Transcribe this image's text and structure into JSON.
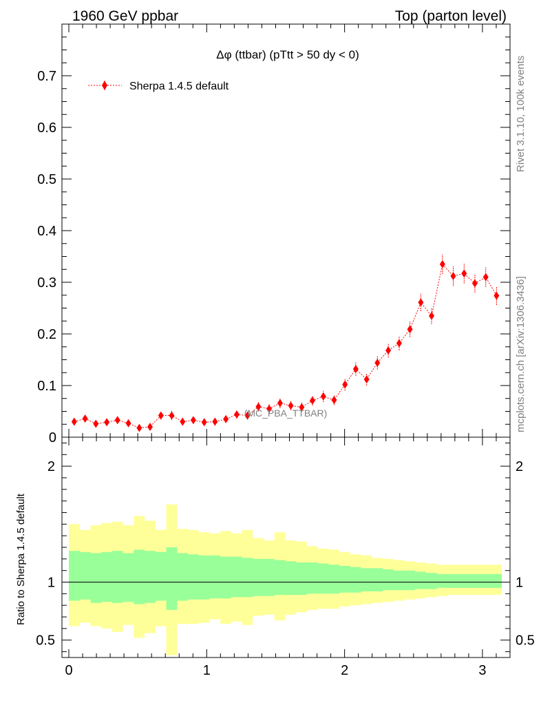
{
  "header": {
    "left": "1960 GeV ppbar",
    "right": "Top (parton level)"
  },
  "side": {
    "rivet": "Rivet 3.1.10,  100k events",
    "mcplots": "mcplots.cern.ch [arXiv:1306.3436]"
  },
  "chart_data": [
    {
      "type": "scatter",
      "title": "Δφ (ttbar) (pTtt > 50 dy < 0)",
      "watermark": "(MC_PBA_TTBAR)",
      "legend": "Sherpa 1.4.5 default",
      "legend_placement": "top-left",
      "color": "#ff0000",
      "xlim": [
        -0.05,
        3.2
      ],
      "ylim": [
        0,
        0.8
      ],
      "yticks": [
        0,
        0.1,
        0.2,
        0.3,
        0.4,
        0.5,
        0.6,
        0.7
      ],
      "ytick_labels": [
        "0",
        "0.1",
        "0.2",
        "0.3",
        "0.4",
        "0.5",
        "0.6",
        "0.7"
      ],
      "series": [
        {
          "name": "Sherpa 1.4.5 default",
          "x": [
            0.039,
            0.118,
            0.196,
            0.275,
            0.353,
            0.432,
            0.511,
            0.589,
            0.668,
            0.746,
            0.825,
            0.903,
            0.982,
            1.06,
            1.139,
            1.218,
            1.296,
            1.375,
            1.453,
            1.532,
            1.61,
            1.689,
            1.767,
            1.846,
            1.924,
            2.003,
            2.081,
            2.16,
            2.238,
            2.317,
            2.396,
            2.474,
            2.553,
            2.631,
            2.71,
            2.788,
            2.867,
            2.945,
            3.024,
            3.102
          ],
          "y": [
            0.03,
            0.036,
            0.026,
            0.029,
            0.033,
            0.027,
            0.018,
            0.02,
            0.042,
            0.042,
            0.03,
            0.033,
            0.029,
            0.03,
            0.035,
            0.044,
            0.042,
            0.059,
            0.055,
            0.066,
            0.061,
            0.058,
            0.071,
            0.079,
            0.072,
            0.102,
            0.132,
            0.112,
            0.144,
            0.168,
            0.182,
            0.209,
            0.261,
            0.235,
            0.335,
            0.312,
            0.317,
            0.298,
            0.31,
            0.274
          ],
          "yerr": [
            0.006,
            0.007,
            0.006,
            0.006,
            0.007,
            0.006,
            0.005,
            0.005,
            0.008,
            0.009,
            0.006,
            0.007,
            0.006,
            0.006,
            0.007,
            0.008,
            0.008,
            0.009,
            0.009,
            0.01,
            0.009,
            0.009,
            0.01,
            0.011,
            0.01,
            0.012,
            0.013,
            0.012,
            0.013,
            0.014,
            0.014,
            0.015,
            0.017,
            0.016,
            0.019,
            0.019,
            0.019,
            0.018,
            0.019,
            0.018
          ]
        }
      ]
    },
    {
      "type": "area",
      "ylabel": "Ratio to Sherpa 1.4.5 default",
      "xlim": [
        -0.05,
        3.2
      ],
      "ylim": [
        0.35,
        2.25
      ],
      "reference_line": 1,
      "xticks": [
        0,
        1,
        2,
        3
      ],
      "xtick_labels": [
        "0",
        "1",
        "2",
        "3"
      ],
      "yticks": [
        0.5,
        1,
        2
      ],
      "ytick_labels": [
        "0.5",
        "1",
        "2"
      ],
      "bin_edges": [
        0,
        0.0785,
        0.157,
        0.2355,
        0.314,
        0.3925,
        0.471,
        0.5495,
        0.628,
        0.7065,
        0.785,
        0.8635,
        0.942,
        1.0205,
        1.099,
        1.1775,
        1.256,
        1.3345,
        1.413,
        1.4915,
        1.57,
        1.6485,
        1.727,
        1.8055,
        1.884,
        1.9625,
        2.041,
        2.1195,
        2.198,
        2.2765,
        2.355,
        2.4335,
        2.512,
        2.5905,
        2.669,
        2.7475,
        2.826,
        2.9045,
        2.983,
        3.0615,
        3.14
      ],
      "bands": [
        {
          "name": "inner",
          "color": "#99ff99",
          "lower": [
            0.84,
            0.85,
            0.82,
            0.83,
            0.82,
            0.83,
            0.81,
            0.82,
            0.84,
            0.76,
            0.84,
            0.85,
            0.85,
            0.86,
            0.86,
            0.87,
            0.87,
            0.88,
            0.88,
            0.89,
            0.89,
            0.89,
            0.9,
            0.9,
            0.9,
            0.91,
            0.91,
            0.92,
            0.92,
            0.93,
            0.93,
            0.93,
            0.94,
            0.94,
            0.95,
            0.95,
            0.95,
            0.95,
            0.95,
            0.95
          ],
          "upper": [
            1.27,
            1.26,
            1.25,
            1.26,
            1.27,
            1.25,
            1.28,
            1.27,
            1.26,
            1.3,
            1.25,
            1.24,
            1.23,
            1.23,
            1.22,
            1.22,
            1.21,
            1.2,
            1.2,
            1.19,
            1.18,
            1.17,
            1.17,
            1.16,
            1.15,
            1.14,
            1.13,
            1.12,
            1.12,
            1.11,
            1.1,
            1.1,
            1.09,
            1.08,
            1.07,
            1.07,
            1.07,
            1.07,
            1.07,
            1.07
          ]
        },
        {
          "name": "outer",
          "color": "#ffff99",
          "lower": [
            0.62,
            0.65,
            0.62,
            0.6,
            0.57,
            0.63,
            0.52,
            0.56,
            0.62,
            0.37,
            0.64,
            0.64,
            0.65,
            0.68,
            0.64,
            0.66,
            0.63,
            0.71,
            0.72,
            0.67,
            0.72,
            0.74,
            0.76,
            0.77,
            0.77,
            0.79,
            0.8,
            0.81,
            0.82,
            0.83,
            0.84,
            0.85,
            0.86,
            0.87,
            0.88,
            0.89,
            0.89,
            0.89,
            0.89,
            0.89
          ],
          "upper": [
            1.5,
            1.45,
            1.49,
            1.51,
            1.52,
            1.49,
            1.57,
            1.53,
            1.45,
            1.67,
            1.46,
            1.45,
            1.43,
            1.42,
            1.44,
            1.42,
            1.45,
            1.38,
            1.36,
            1.43,
            1.36,
            1.35,
            1.31,
            1.29,
            1.28,
            1.26,
            1.24,
            1.23,
            1.21,
            1.2,
            1.19,
            1.18,
            1.17,
            1.16,
            1.15,
            1.15,
            1.15,
            1.15,
            1.15,
            1.15
          ]
        }
      ]
    }
  ]
}
